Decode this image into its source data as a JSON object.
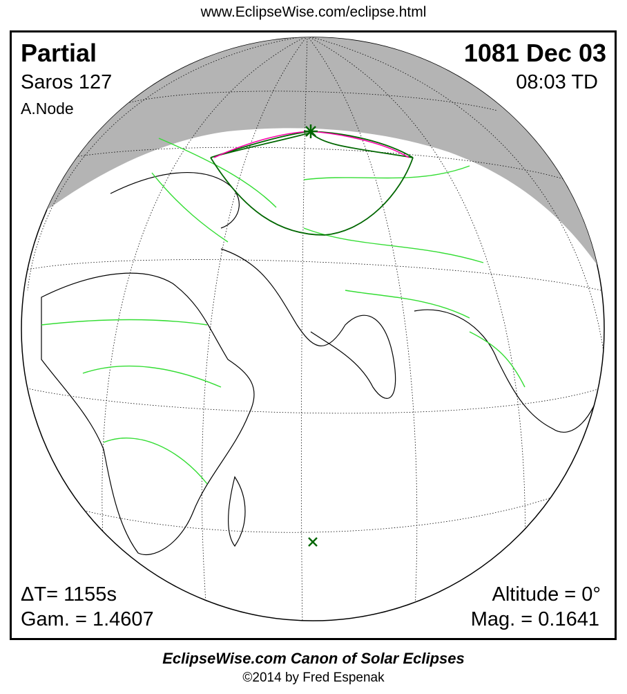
{
  "url": "www.EclipseWise.com/eclipse.html",
  "eclipse": {
    "type": "Partial",
    "date": "1081 Dec 03",
    "saros": "Saros 127",
    "time": "08:03 TD",
    "node": "A.Node",
    "delta_t": "ΔT=   1155s",
    "gamma": "Gam. = 1.4607",
    "altitude": "Altitude =  0°",
    "magnitude": "Mag. = 0.1641"
  },
  "footer": {
    "title": "EclipseWise.com Canon of Solar Eclipses",
    "copyright": "©2014 by Fred Espenak"
  },
  "colors": {
    "night": "#b4b4b4",
    "borders": "#33dd33",
    "eclipse_limits": "#006600",
    "max_eclipse_curve": "#ff00aa",
    "coast": "#000000"
  },
  "markers": {
    "greatest_eclipse": "asterisk-icon",
    "sub_solar_point": "x-icon"
  }
}
